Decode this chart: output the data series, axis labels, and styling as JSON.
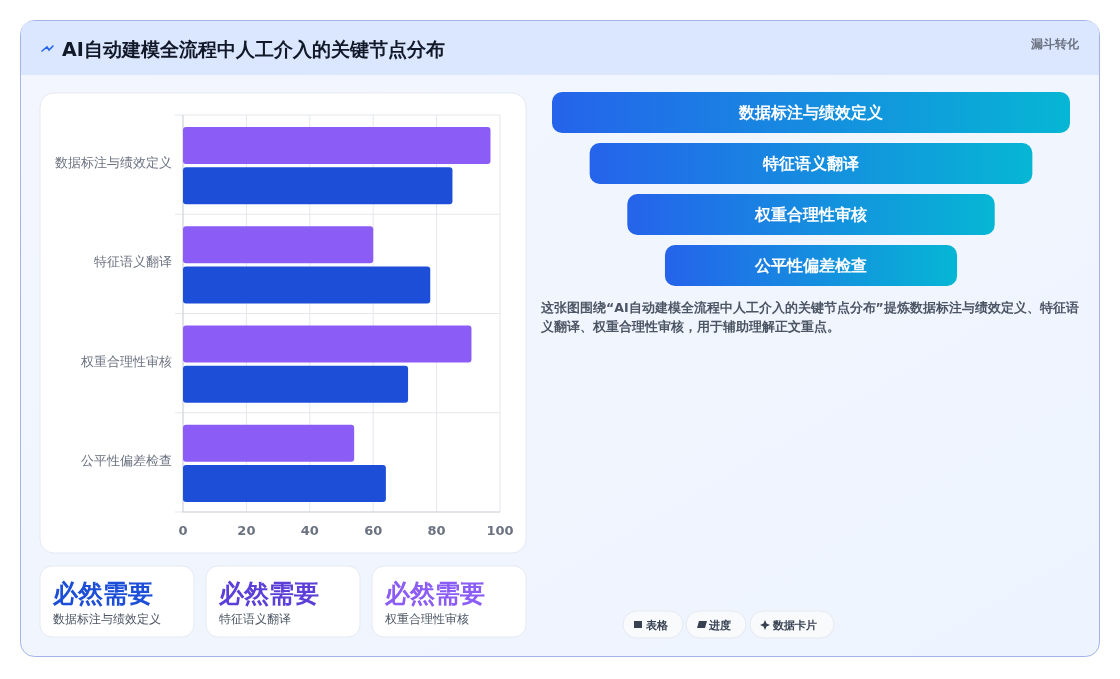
{
  "chart_data": [
    {
      "type": "bar",
      "title": "AI自动建模全流程中人工介入的关键节点分布",
      "orientation": "horizontal",
      "categories": [
        "数据标注与绩效定义",
        "特征语义翻译",
        "权重合理性审核",
        "公平性偏差检查"
      ],
      "series": [
        {
          "color": "#8b5cf6",
          "values": [
            97,
            60,
            91,
            54
          ]
        },
        {
          "color": "#1d4ed8",
          "values": [
            85,
            78,
            71,
            64
          ]
        }
      ],
      "xlim": [
        0,
        100
      ],
      "xticks": [
        0,
        20,
        40,
        60,
        80,
        100
      ],
      "grid": true
    },
    {
      "type": "other",
      "title": "漏斗转化",
      "categories": [
        "数据标注与绩效定义",
        "特征语义翻译",
        "权重合理性审核",
        "公平性偏差检查"
      ],
      "annotations": [
        "这张图围绕“AI自动建模全流程中人工介入的关键节点分布”提炼数据标注与绩效定义、特征语义翻译、权重合理性审核，用于辅助理解正文重点。",
        "表格",
        "进度",
        "数据卡片"
      ]
    },
    {
      "type": "other",
      "categories": [
        "数据标注与绩效定义",
        "特征语义翻译",
        "权重合理性审核"
      ],
      "annotations": [
        "必然需要",
        "必然需要",
        "必然需要"
      ]
    }
  ]
}
